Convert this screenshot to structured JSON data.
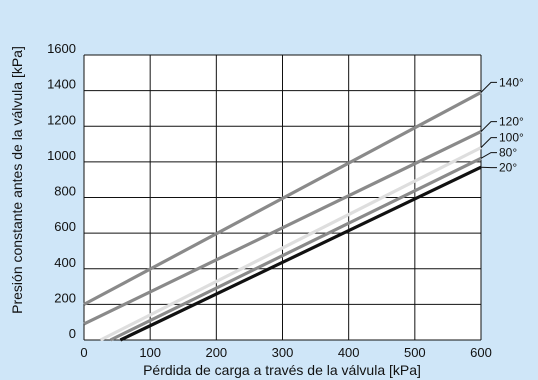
{
  "chart_data": {
    "type": "line",
    "title": "",
    "xlabel": "Pérdida de carga a través de la válvula [kPa]",
    "ylabel": "Presión constante antes de la válvula [kPa]",
    "xlim": [
      0,
      600
    ],
    "ylim": [
      0,
      1600
    ],
    "xticks": [
      0,
      100,
      200,
      300,
      400,
      500,
      600
    ],
    "yticks": [
      0,
      200,
      400,
      600,
      800,
      1000,
      1200,
      1400,
      1600
    ],
    "grid": true,
    "colors": {
      "background": "#cfe6f8",
      "plot_area": "#ffffff",
      "grid": "#111111",
      "label_leader": "#111111"
    },
    "series": [
      {
        "name": "140°",
        "color": "#8a8a8a",
        "x": [
          0,
          600
        ],
        "y": [
          200,
          1390
        ]
      },
      {
        "name": "120°",
        "color": "#8a8a8a",
        "x": [
          0,
          600
        ],
        "y": [
          90,
          1170
        ]
      },
      {
        "name": "100°",
        "color": "#dedede",
        "x": [
          25,
          600
        ],
        "y": [
          0,
          1080
        ]
      },
      {
        "name": "80°",
        "color": "#8a8a8a",
        "x": [
          40,
          600
        ],
        "y": [
          0,
          1020
        ]
      },
      {
        "name": "20°",
        "color": "#111111",
        "x": [
          55,
          600
        ],
        "y": [
          0,
          970
        ]
      }
    ]
  }
}
